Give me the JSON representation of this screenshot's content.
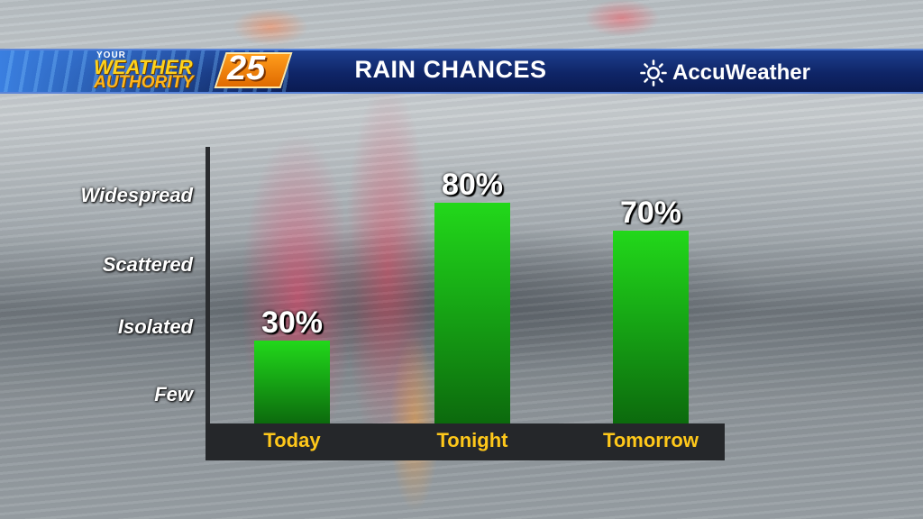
{
  "header": {
    "logo": {
      "line1": "YOUR",
      "line2": "WEATHER",
      "line3": "AUTHORITY",
      "number": "25"
    },
    "title": "RAIN CHANCES",
    "brand": {
      "name": "AccuWeather",
      "icon": "sun-icon"
    }
  },
  "colors": {
    "bar": "#17a815",
    "header_bg": "#0f2567",
    "category_text": "#ffc81a",
    "axis": "#25272a"
  },
  "chart_data": {
    "type": "bar",
    "categories": [
      "Today",
      "Tonight",
      "Tomorrow"
    ],
    "values": [
      30,
      80,
      70
    ],
    "value_labels": [
      "30%",
      "80%",
      "70%"
    ],
    "y_categories": [
      "Few",
      "Isolated",
      "Scattered",
      "Widespread"
    ],
    "ylim": [
      0,
      100
    ],
    "grid": false,
    "legend": "none",
    "title": "RAIN CHANCES",
    "xlabel": "",
    "ylabel": ""
  }
}
